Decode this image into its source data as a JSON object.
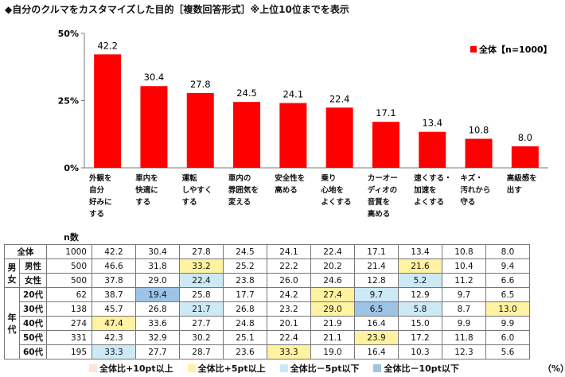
{
  "title": "◆自分のクルマをカスタマイズした目的［複数回答形式］※上位10位までを表示",
  "chart_data": {
    "type": "bar",
    "categories": [
      "外観を\n自分\n好みに\nする",
      "車内を\n快適に\nする",
      "運転\nしやすく\nする",
      "車内の\n雰囲気を\n変える",
      "安全性を\n高める",
      "乗り\n心地を\nよくする",
      "カーオー\nディオの\n音質を\n高める",
      "速くする・\n加速を\nよくする",
      "キズ・\n汚れから\n守る",
      "高級感を\n出す"
    ],
    "series": [
      {
        "name": "全体【n=1000】",
        "values": [
          42.2,
          30.4,
          27.8,
          24.5,
          24.1,
          22.4,
          17.1,
          13.4,
          10.8,
          8.0
        ]
      }
    ],
    "value_labels": [
      "42.2",
      "30.4",
      "27.8",
      "24.5",
      "24.1",
      "22.4",
      "17.1",
      "13.4",
      "10.8",
      "8.0"
    ],
    "ylim": [
      0,
      50
    ],
    "ytick_labels": [
      "0%",
      "25%",
      "50%"
    ],
    "legend": "top-right",
    "bar_color": "#FF0000"
  },
  "table": {
    "n_header": "n数",
    "rows": [
      {
        "group": "",
        "label": "全体",
        "n": "1000",
        "values": [
          "42.2",
          "30.4",
          "27.8",
          "24.5",
          "24.1",
          "22.4",
          "17.1",
          "13.4",
          "10.8",
          "8.0"
        ],
        "hl": [
          0,
          0,
          0,
          0,
          0,
          0,
          0,
          0,
          0,
          0
        ]
      },
      {
        "group": "男女",
        "label": "男性",
        "n": "500",
        "values": [
          "46.6",
          "31.8",
          "33.2",
          "25.2",
          "22.2",
          "20.2",
          "21.4",
          "21.6",
          "10.4",
          "9.4"
        ],
        "hl": [
          0,
          0,
          2,
          0,
          0,
          0,
          0,
          2,
          0,
          0
        ]
      },
      {
        "group": "",
        "label": "女性",
        "n": "500",
        "values": [
          "37.8",
          "29.0",
          "22.4",
          "23.8",
          "26.0",
          "24.6",
          "12.8",
          "5.2",
          "11.2",
          "6.6"
        ],
        "hl": [
          0,
          0,
          3,
          0,
          0,
          0,
          0,
          3,
          0,
          0
        ]
      },
      {
        "group": "年代",
        "label": "20代",
        "n": "62",
        "values": [
          "38.7",
          "19.4",
          "25.8",
          "17.7",
          "24.2",
          "27.4",
          "9.7",
          "12.9",
          "9.7",
          "6.5"
        ],
        "hl": [
          0,
          4,
          0,
          0,
          0,
          2,
          3,
          0,
          0,
          0
        ]
      },
      {
        "group": "",
        "label": "30代",
        "n": "138",
        "values": [
          "45.7",
          "26.8",
          "21.7",
          "26.8",
          "23.2",
          "29.0",
          "6.5",
          "5.8",
          "8.7",
          "13.0"
        ],
        "hl": [
          0,
          0,
          3,
          0,
          0,
          2,
          4,
          3,
          0,
          2
        ]
      },
      {
        "group": "",
        "label": "40代",
        "n": "274",
        "values": [
          "47.4",
          "33.6",
          "27.7",
          "24.8",
          "20.1",
          "21.9",
          "16.4",
          "15.0",
          "9.9",
          "9.9"
        ],
        "hl": [
          2,
          0,
          0,
          0,
          0,
          0,
          0,
          0,
          0,
          0
        ]
      },
      {
        "group": "",
        "label": "50代",
        "n": "331",
        "values": [
          "42.3",
          "32.9",
          "30.2",
          "25.1",
          "22.4",
          "21.1",
          "23.9",
          "17.2",
          "11.8",
          "6.0"
        ],
        "hl": [
          0,
          0,
          0,
          0,
          0,
          0,
          2,
          0,
          0,
          0
        ]
      },
      {
        "group": "",
        "label": "60代",
        "n": "195",
        "values": [
          "33.3",
          "27.7",
          "28.7",
          "23.6",
          "33.3",
          "19.0",
          "16.4",
          "10.3",
          "12.3",
          "5.6"
        ],
        "hl": [
          3,
          0,
          0,
          0,
          2,
          0,
          0,
          0,
          0,
          0
        ]
      }
    ]
  },
  "legend_items": [
    {
      "label": "全体比+10pt以上",
      "color": "#FCE4D6"
    },
    {
      "label": "全体比+5pt以上",
      "color": "#FFF2A0"
    },
    {
      "label": "全体比－5pt以下",
      "color": "#CCE9F5"
    },
    {
      "label": "全体比－10pt以下",
      "color": "#9DC3E6"
    }
  ],
  "unit": "（%）"
}
